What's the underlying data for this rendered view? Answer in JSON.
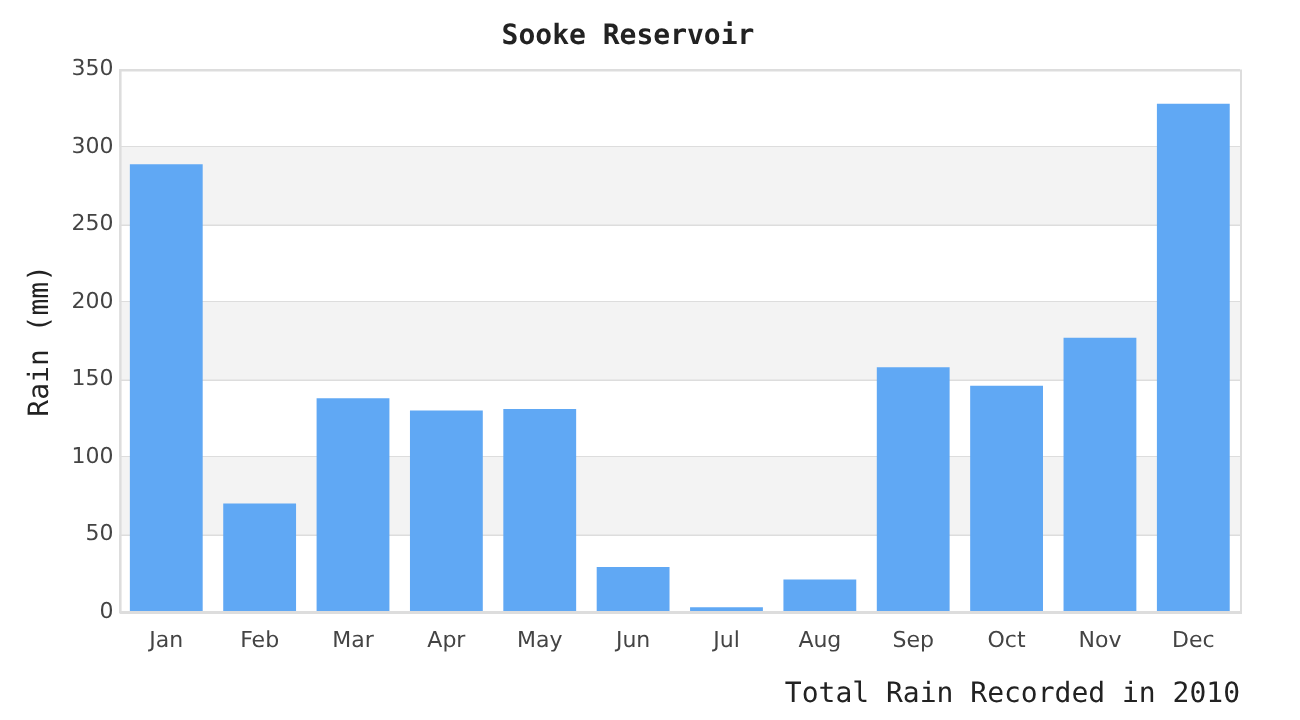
{
  "chart_data": {
    "type": "bar",
    "title": "Sooke Reservoir",
    "xlabel": "Total Rain Recorded in 2010",
    "ylabel": "Rain (mm)",
    "categories": [
      "Jan",
      "Feb",
      "Mar",
      "Apr",
      "May",
      "Jun",
      "Jul",
      "Aug",
      "Sep",
      "Oct",
      "Nov",
      "Dec"
    ],
    "values": [
      289,
      70,
      138,
      130,
      131,
      29,
      3,
      21,
      158,
      146,
      177,
      328
    ],
    "color": "#60a8f4",
    "ylim": [
      0,
      350
    ],
    "yticks": [
      0,
      50,
      100,
      150,
      200,
      250,
      300,
      350
    ],
    "grid": "y",
    "legend": false
  }
}
